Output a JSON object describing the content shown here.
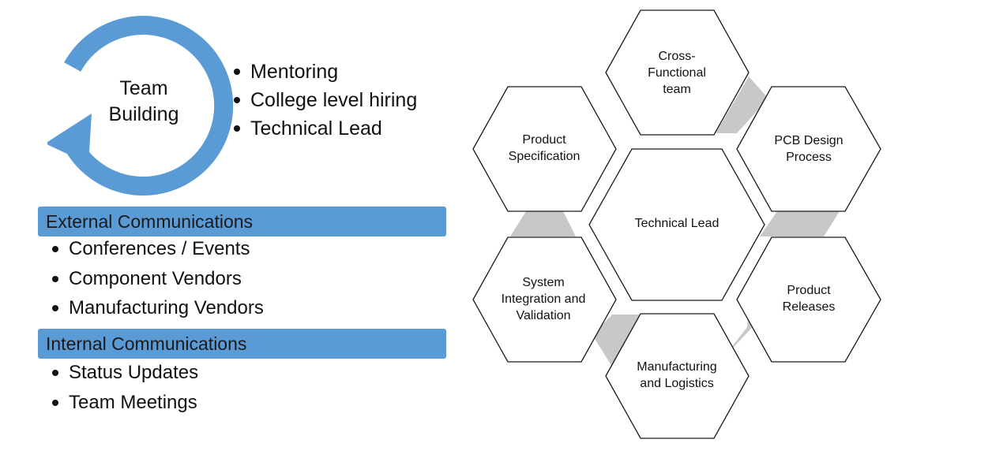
{
  "team_building": {
    "label_line1": "Team",
    "label_line2": "Building",
    "bullets": [
      "Mentoring",
      "College level hiring",
      "Technical Lead"
    ]
  },
  "external_communications": {
    "title": "External Communications",
    "items": [
      "Conferences / Events",
      "Component Vendors",
      "Manufacturing Vendors"
    ]
  },
  "internal_communications": {
    "title": "Internal Communications",
    "items": [
      "Status Updates",
      "Team Meetings"
    ]
  },
  "hexagons": {
    "center": "Technical Lead",
    "cross_functional": [
      "Cross-",
      "Functional",
      "team"
    ],
    "pcb_design": [
      "PCB Design",
      "Process"
    ],
    "product_releases": [
      "Product",
      "Releases"
    ],
    "manufacturing": [
      "Manufacturing",
      "and Logistics"
    ],
    "system_integration": [
      "System",
      "Integration and",
      "Validation"
    ],
    "product_specification": [
      "Product",
      "Specification"
    ]
  },
  "colors": {
    "accent_blue": "#5b9bd5",
    "connector_gray": "#c8c8c8",
    "hex_stroke": "#1a1a1a"
  }
}
